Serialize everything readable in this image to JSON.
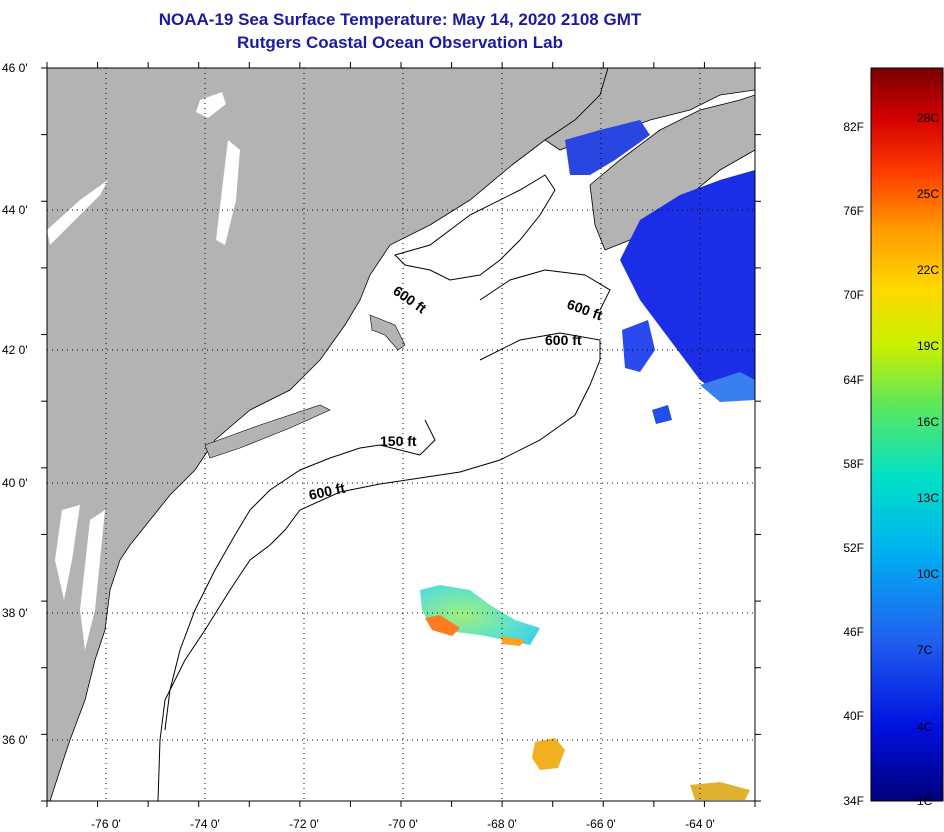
{
  "title": "NOAA-19 Sea Surface Temperature:  May 14, 2020 2108 GMT",
  "subtitle": "Rutgers Coastal Ocean Observation Lab",
  "map": {
    "lat_labels": [
      "46 0'",
      "44 0'",
      "42 0'",
      "40 0'",
      "38 0'",
      "36 0'"
    ],
    "lat_values": [
      46,
      44,
      42,
      40,
      38,
      36
    ],
    "lon_labels": [
      "-76 0'",
      "-74 0'",
      "-72 0'",
      "-70 0'",
      "-68 0'",
      "-66 0'",
      "-64 0'"
    ],
    "lon_values": [
      -76,
      -74,
      -72,
      -70,
      -68,
      -66,
      -64
    ],
    "lat_range": [
      35,
      46
    ],
    "lon_range": [
      -77,
      -63
    ],
    "land_color": "#b3b3b3",
    "ocean_color": "#ffffff",
    "contours": [
      "600 ft",
      "600 ft",
      "600 ft",
      "150 ft",
      "600 ft"
    ]
  },
  "colorbar": {
    "fahrenheit": [
      "82F",
      "76F",
      "70F",
      "64F",
      "58F",
      "52F",
      "46F",
      "40F",
      "34F"
    ],
    "celsius": [
      "28C",
      "25C",
      "22C",
      "19C",
      "16C",
      "13C",
      "10C",
      "7C",
      "4C",
      "1C"
    ],
    "colors": [
      "#7a0000",
      "#d40000",
      "#ff3a00",
      "#ff9a00",
      "#ffd800",
      "#c8f000",
      "#5ce85c",
      "#00e0c8",
      "#00b0f0",
      "#2060f0",
      "#0010e0",
      "#00007a"
    ]
  }
}
